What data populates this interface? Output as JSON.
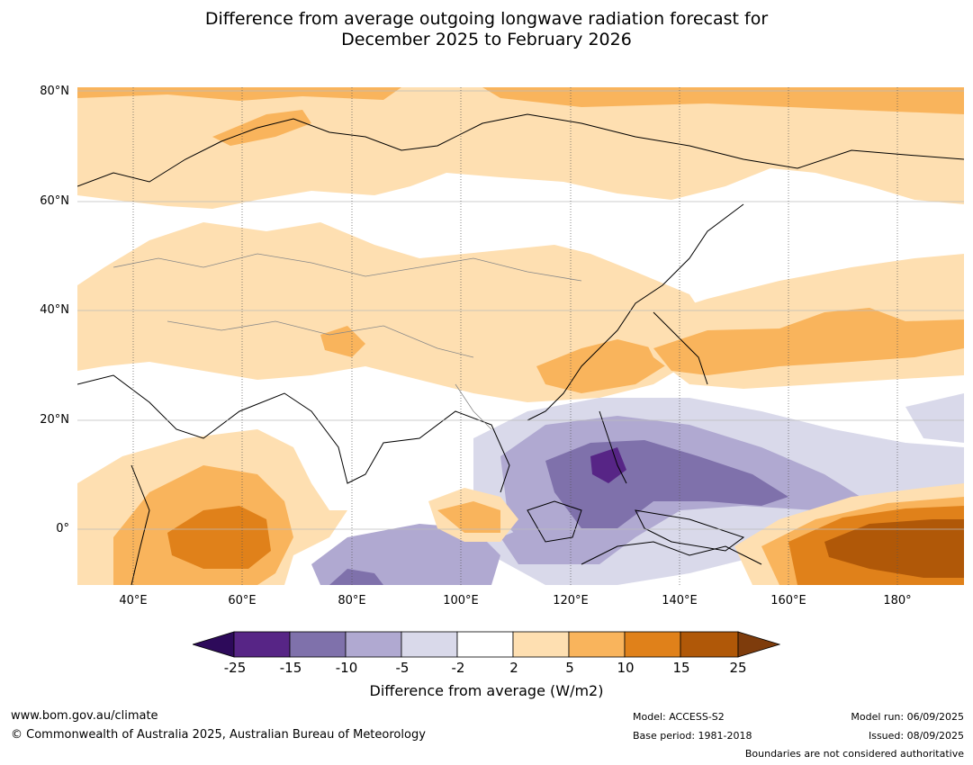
{
  "title": {
    "line1": "Difference from average outgoing longwave radiation forecast for",
    "line2": "December 2025 to February 2026"
  },
  "map": {
    "lat_labels": [
      "80°N",
      "60°N",
      "40°N",
      "20°N",
      "0°"
    ],
    "lon_labels": [
      "40°E",
      "60°E",
      "80°E",
      "100°E",
      "120°E",
      "140°E",
      "160°E",
      "180°"
    ]
  },
  "colorbar": {
    "ticks": [
      "-25",
      "-15",
      "-10",
      "-5",
      "-2",
      "2",
      "5",
      "10",
      "15",
      "25"
    ],
    "colors": [
      "#2d0a5a",
      "#572586",
      "#7f71ab",
      "#b0a9d1",
      "#d9d9ea",
      "#ffffff",
      "#fedfb1",
      "#f9b45c",
      "#e0811a",
      "#b05808",
      "#7e3c0c"
    ],
    "label": "Difference from average (W/m2)"
  },
  "footer": {
    "website": "www.bom.gov.au/climate",
    "copyright": "© Commonwealth of Australia 2025, Australian Bureau of Meteorology",
    "model": "Model: ACCESS-S2",
    "base_period": "Base period: 1981-2018",
    "model_run": "Model run: 06/09/2025",
    "issued": "Issued: 08/09/2025",
    "disclaimer": "Boundaries are not considered authoritative"
  }
}
